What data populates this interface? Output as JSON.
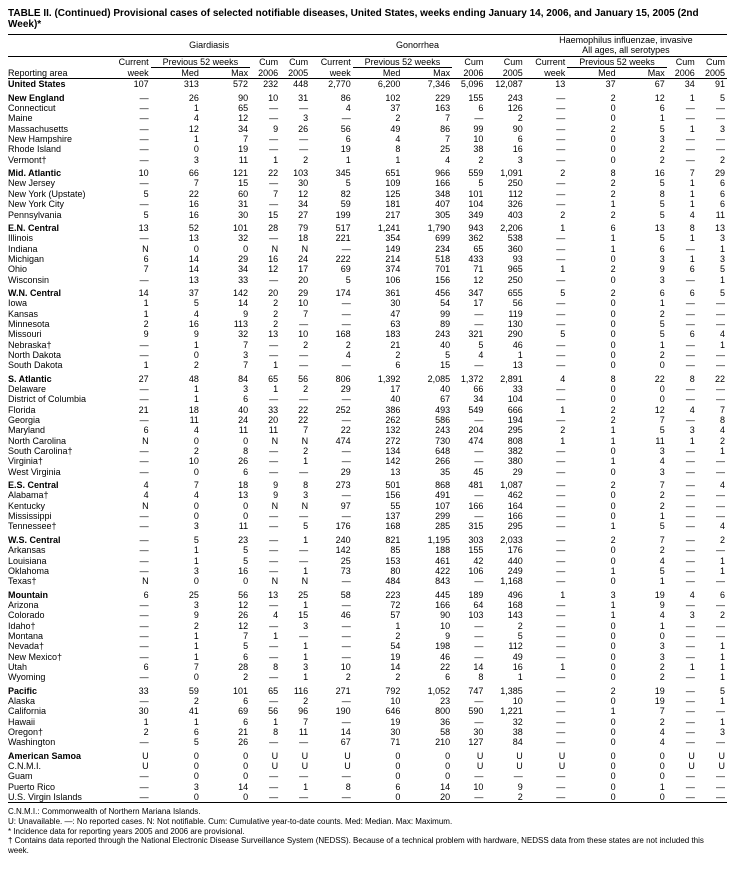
{
  "title": "TABLE II. (Continued) Provisional cases of selected notifiable diseases, United States, weeks ending January 14, 2006, and January 15, 2005 (2nd Week)*",
  "diseases": [
    "Giardiasis",
    "Gonorrhea",
    "Haemophilus influenzae, invasive\nAll ages, all serotypes"
  ],
  "group_headers": {
    "current": "Current",
    "prev": "Previous 52 weeks",
    "cum": "Cum",
    "cum2": "Cum"
  },
  "col_headers": [
    "Reporting area",
    "week",
    "Med",
    "Max",
    "2006",
    "2005",
    "week",
    "Med",
    "Max",
    "2006",
    "2005",
    "week",
    "Med",
    "Max",
    "2006",
    "2005"
  ],
  "rows": [
    {
      "section": true,
      "area": "United States",
      "v": [
        "107",
        "313",
        "572",
        "232",
        "448",
        "2,770",
        "6,200",
        "7,346",
        "5,096",
        "12,087",
        "13",
        "37",
        "67",
        "34",
        "91"
      ]
    },
    {
      "section": true,
      "area": "New England",
      "v": [
        "—",
        "26",
        "90",
        "10",
        "31",
        "86",
        "102",
        "229",
        "155",
        "243",
        "—",
        "2",
        "12",
        "1",
        "5"
      ]
    },
    {
      "area": "Connecticut",
      "v": [
        "—",
        "1",
        "65",
        "—",
        "—",
        "4",
        "37",
        "163",
        "6",
        "126",
        "—",
        "0",
        "6",
        "—",
        "—"
      ]
    },
    {
      "area": "Maine",
      "v": [
        "—",
        "4",
        "12",
        "—",
        "3",
        "—",
        "2",
        "7",
        "—",
        "2",
        "—",
        "0",
        "1",
        "—",
        "—"
      ]
    },
    {
      "area": "Massachusetts",
      "v": [
        "—",
        "12",
        "34",
        "9",
        "26",
        "56",
        "49",
        "86",
        "99",
        "90",
        "—",
        "2",
        "5",
        "1",
        "3"
      ]
    },
    {
      "area": "New Hampshire",
      "v": [
        "—",
        "1",
        "7",
        "—",
        "—",
        "6",
        "4",
        "7",
        "10",
        "6",
        "—",
        "0",
        "3",
        "—",
        "—"
      ]
    },
    {
      "area": "Rhode Island",
      "v": [
        "—",
        "0",
        "19",
        "—",
        "—",
        "19",
        "8",
        "25",
        "38",
        "16",
        "—",
        "0",
        "2",
        "—",
        "—"
      ]
    },
    {
      "area": "Vermont†",
      "v": [
        "—",
        "3",
        "11",
        "1",
        "2",
        "1",
        "1",
        "4",
        "2",
        "3",
        "—",
        "0",
        "2",
        "—",
        "2"
      ]
    },
    {
      "section": true,
      "area": "Mid. Atlantic",
      "v": [
        "10",
        "66",
        "121",
        "22",
        "103",
        "345",
        "651",
        "966",
        "559",
        "1,091",
        "2",
        "8",
        "16",
        "7",
        "29"
      ]
    },
    {
      "area": "New Jersey",
      "v": [
        "—",
        "7",
        "15",
        "—",
        "30",
        "5",
        "109",
        "166",
        "5",
        "250",
        "—",
        "2",
        "5",
        "1",
        "6"
      ]
    },
    {
      "area": "New York (Upstate)",
      "v": [
        "5",
        "22",
        "60",
        "7",
        "12",
        "82",
        "125",
        "348",
        "101",
        "112",
        "—",
        "2",
        "8",
        "1",
        "6"
      ]
    },
    {
      "area": "New York City",
      "v": [
        "—",
        "16",
        "31",
        "—",
        "34",
        "59",
        "181",
        "407",
        "104",
        "326",
        "—",
        "1",
        "5",
        "1",
        "6"
      ]
    },
    {
      "area": "Pennsylvania",
      "v": [
        "5",
        "16",
        "30",
        "15",
        "27",
        "199",
        "217",
        "305",
        "349",
        "403",
        "2",
        "2",
        "5",
        "4",
        "11"
      ]
    },
    {
      "section": true,
      "area": "E.N. Central",
      "v": [
        "13",
        "52",
        "101",
        "28",
        "79",
        "517",
        "1,241",
        "1,790",
        "943",
        "2,206",
        "1",
        "6",
        "13",
        "8",
        "13"
      ]
    },
    {
      "area": "Illinois",
      "v": [
        "—",
        "13",
        "32",
        "—",
        "18",
        "221",
        "354",
        "699",
        "362",
        "538",
        "—",
        "1",
        "5",
        "1",
        "3"
      ]
    },
    {
      "area": "Indiana",
      "v": [
        "N",
        "0",
        "0",
        "N",
        "N",
        "—",
        "149",
        "234",
        "65",
        "360",
        "—",
        "1",
        "6",
        "—",
        "1"
      ]
    },
    {
      "area": "Michigan",
      "v": [
        "6",
        "14",
        "29",
        "16",
        "24",
        "222",
        "214",
        "518",
        "433",
        "93",
        "—",
        "0",
        "3",
        "1",
        "3"
      ]
    },
    {
      "area": "Ohio",
      "v": [
        "7",
        "14",
        "34",
        "12",
        "17",
        "69",
        "374",
        "701",
        "71",
        "965",
        "1",
        "2",
        "9",
        "6",
        "5"
      ]
    },
    {
      "area": "Wisconsin",
      "v": [
        "—",
        "13",
        "33",
        "—",
        "20",
        "5",
        "106",
        "156",
        "12",
        "250",
        "—",
        "0",
        "3",
        "—",
        "1"
      ]
    },
    {
      "section": true,
      "area": "W.N. Central",
      "v": [
        "14",
        "37",
        "142",
        "20",
        "29",
        "174",
        "361",
        "456",
        "347",
        "655",
        "5",
        "2",
        "6",
        "6",
        "5"
      ]
    },
    {
      "area": "Iowa",
      "v": [
        "1",
        "5",
        "14",
        "2",
        "10",
        "—",
        "30",
        "54",
        "17",
        "56",
        "—",
        "0",
        "1",
        "—",
        "—"
      ]
    },
    {
      "area": "Kansas",
      "v": [
        "1",
        "4",
        "9",
        "2",
        "7",
        "—",
        "47",
        "99",
        "—",
        "119",
        "—",
        "0",
        "2",
        "—",
        "—"
      ]
    },
    {
      "area": "Minnesota",
      "v": [
        "2",
        "16",
        "113",
        "2",
        "—",
        "—",
        "63",
        "89",
        "—",
        "130",
        "—",
        "0",
        "5",
        "—",
        "—"
      ]
    },
    {
      "area": "Missouri",
      "v": [
        "9",
        "9",
        "32",
        "13",
        "10",
        "168",
        "183",
        "243",
        "321",
        "290",
        "5",
        "0",
        "5",
        "6",
        "4"
      ]
    },
    {
      "area": "Nebraska†",
      "v": [
        "—",
        "1",
        "7",
        "—",
        "2",
        "2",
        "21",
        "40",
        "5",
        "46",
        "—",
        "0",
        "1",
        "—",
        "1"
      ]
    },
    {
      "area": "North Dakota",
      "v": [
        "—",
        "0",
        "3",
        "—",
        "—",
        "4",
        "2",
        "5",
        "4",
        "1",
        "—",
        "0",
        "2",
        "—",
        "—"
      ]
    },
    {
      "area": "South Dakota",
      "v": [
        "1",
        "2",
        "7",
        "1",
        "—",
        "—",
        "6",
        "15",
        "—",
        "13",
        "—",
        "0",
        "0",
        "—",
        "—"
      ]
    },
    {
      "section": true,
      "area": "S. Atlantic",
      "v": [
        "27",
        "48",
        "84",
        "65",
        "56",
        "806",
        "1,392",
        "2,085",
        "1,372",
        "2,891",
        "4",
        "8",
        "22",
        "8",
        "22"
      ]
    },
    {
      "area": "Delaware",
      "v": [
        "—",
        "1",
        "3",
        "1",
        "2",
        "29",
        "17",
        "40",
        "66",
        "33",
        "—",
        "0",
        "0",
        "—",
        "—"
      ]
    },
    {
      "area": "District of Columbia",
      "v": [
        "—",
        "1",
        "6",
        "—",
        "—",
        "—",
        "40",
        "67",
        "34",
        "104",
        "—",
        "0",
        "0",
        "—",
        "—"
      ]
    },
    {
      "area": "Florida",
      "v": [
        "21",
        "18",
        "40",
        "33",
        "22",
        "252",
        "386",
        "493",
        "549",
        "666",
        "1",
        "2",
        "12",
        "4",
        "7"
      ]
    },
    {
      "area": "Georgia",
      "v": [
        "—",
        "11",
        "24",
        "20",
        "22",
        "—",
        "262",
        "586",
        "—",
        "194",
        "—",
        "2",
        "7",
        "—",
        "8"
      ]
    },
    {
      "area": "Maryland",
      "v": [
        "6",
        "4",
        "11",
        "11",
        "7",
        "22",
        "132",
        "243",
        "204",
        "295",
        "2",
        "1",
        "5",
        "3",
        "4"
      ]
    },
    {
      "area": "North Carolina",
      "v": [
        "N",
        "0",
        "0",
        "N",
        "N",
        "474",
        "272",
        "730",
        "474",
        "808",
        "1",
        "1",
        "11",
        "1",
        "2"
      ]
    },
    {
      "area": "South Carolina†",
      "v": [
        "—",
        "2",
        "8",
        "—",
        "2",
        "—",
        "134",
        "648",
        "—",
        "382",
        "—",
        "0",
        "3",
        "—",
        "1"
      ]
    },
    {
      "area": "Virginia†",
      "v": [
        "—",
        "10",
        "26",
        "—",
        "1",
        "—",
        "142",
        "266",
        "—",
        "380",
        "—",
        "1",
        "4",
        "—",
        "—"
      ]
    },
    {
      "area": "West Virginia",
      "v": [
        "—",
        "0",
        "6",
        "—",
        "—",
        "29",
        "13",
        "35",
        "45",
        "29",
        "—",
        "0",
        "3",
        "—",
        "—"
      ]
    },
    {
      "section": true,
      "area": "E.S. Central",
      "v": [
        "4",
        "7",
        "18",
        "9",
        "8",
        "273",
        "501",
        "868",
        "481",
        "1,087",
        "—",
        "2",
        "7",
        "—",
        "4"
      ]
    },
    {
      "area": "Alabama†",
      "v": [
        "4",
        "4",
        "13",
        "9",
        "3",
        "—",
        "156",
        "491",
        "—",
        "462",
        "—",
        "0",
        "2",
        "—",
        "—"
      ]
    },
    {
      "area": "Kentucky",
      "v": [
        "N",
        "0",
        "0",
        "N",
        "N",
        "97",
        "55",
        "107",
        "166",
        "164",
        "—",
        "0",
        "2",
        "—",
        "—"
      ]
    },
    {
      "area": "Mississippi",
      "v": [
        "—",
        "0",
        "0",
        "—",
        "—",
        "—",
        "137",
        "299",
        "—",
        "166",
        "—",
        "0",
        "1",
        "—",
        "—"
      ]
    },
    {
      "area": "Tennessee†",
      "v": [
        "—",
        "3",
        "11",
        "—",
        "5",
        "176",
        "168",
        "285",
        "315",
        "295",
        "—",
        "1",
        "5",
        "—",
        "4"
      ]
    },
    {
      "section": true,
      "area": "W.S. Central",
      "v": [
        "—",
        "5",
        "23",
        "—",
        "1",
        "240",
        "821",
        "1,195",
        "303",
        "2,033",
        "—",
        "2",
        "7",
        "—",
        "2"
      ]
    },
    {
      "area": "Arkansas",
      "v": [
        "—",
        "1",
        "5",
        "—",
        "—",
        "142",
        "85",
        "188",
        "155",
        "176",
        "—",
        "0",
        "2",
        "—",
        "—"
      ]
    },
    {
      "area": "Louisiana",
      "v": [
        "—",
        "1",
        "5",
        "—",
        "—",
        "25",
        "153",
        "461",
        "42",
        "440",
        "—",
        "0",
        "4",
        "—",
        "1"
      ]
    },
    {
      "area": "Oklahoma",
      "v": [
        "—",
        "3",
        "16",
        "—",
        "1",
        "73",
        "80",
        "422",
        "106",
        "249",
        "—",
        "1",
        "5",
        "—",
        "1"
      ]
    },
    {
      "area": "Texas†",
      "v": [
        "N",
        "0",
        "0",
        "N",
        "N",
        "—",
        "484",
        "843",
        "—",
        "1,168",
        "—",
        "0",
        "1",
        "—",
        "—"
      ]
    },
    {
      "section": true,
      "area": "Mountain",
      "v": [
        "6",
        "25",
        "56",
        "13",
        "25",
        "58",
        "223",
        "445",
        "189",
        "496",
        "1",
        "3",
        "19",
        "4",
        "6"
      ]
    },
    {
      "area": "Arizona",
      "v": [
        "—",
        "3",
        "12",
        "—",
        "1",
        "—",
        "72",
        "166",
        "64",
        "168",
        "—",
        "1",
        "9",
        "—",
        "—"
      ]
    },
    {
      "area": "Colorado",
      "v": [
        "—",
        "9",
        "26",
        "4",
        "15",
        "46",
        "57",
        "90",
        "103",
        "143",
        "—",
        "1",
        "4",
        "3",
        "2"
      ]
    },
    {
      "area": "Idaho†",
      "v": [
        "—",
        "2",
        "12",
        "—",
        "3",
        "—",
        "1",
        "10",
        "—",
        "2",
        "—",
        "0",
        "1",
        "—",
        "—"
      ]
    },
    {
      "area": "Montana",
      "v": [
        "—",
        "1",
        "7",
        "1",
        "—",
        "—",
        "2",
        "9",
        "—",
        "5",
        "—",
        "0",
        "0",
        "—",
        "—"
      ]
    },
    {
      "area": "Nevada†",
      "v": [
        "—",
        "1",
        "5",
        "—",
        "1",
        "—",
        "54",
        "198",
        "—",
        "112",
        "—",
        "0",
        "3",
        "—",
        "1"
      ]
    },
    {
      "area": "New Mexico†",
      "v": [
        "—",
        "1",
        "6",
        "—",
        "1",
        "—",
        "19",
        "46",
        "—",
        "49",
        "—",
        "0",
        "3",
        "—",
        "1"
      ]
    },
    {
      "area": "Utah",
      "v": [
        "6",
        "7",
        "28",
        "8",
        "3",
        "10",
        "14",
        "22",
        "14",
        "16",
        "1",
        "0",
        "2",
        "1",
        "1"
      ]
    },
    {
      "area": "Wyoming",
      "v": [
        "—",
        "0",
        "2",
        "—",
        "1",
        "2",
        "2",
        "6",
        "8",
        "1",
        "—",
        "0",
        "2",
        "—",
        "1"
      ]
    },
    {
      "section": true,
      "area": "Pacific",
      "v": [
        "33",
        "59",
        "101",
        "65",
        "116",
        "271",
        "792",
        "1,052",
        "747",
        "1,385",
        "—",
        "2",
        "19",
        "—",
        "5"
      ]
    },
    {
      "area": "Alaska",
      "v": [
        "—",
        "2",
        "6",
        "—",
        "2",
        "—",
        "10",
        "23",
        "—",
        "10",
        "—",
        "0",
        "19",
        "—",
        "1"
      ]
    },
    {
      "area": "California",
      "v": [
        "30",
        "41",
        "69",
        "56",
        "96",
        "190",
        "646",
        "800",
        "590",
        "1,221",
        "—",
        "1",
        "7",
        "—",
        "—"
      ]
    },
    {
      "area": "Hawaii",
      "v": [
        "1",
        "1",
        "6",
        "1",
        "7",
        "—",
        "19",
        "36",
        "—",
        "32",
        "—",
        "0",
        "2",
        "—",
        "1"
      ]
    },
    {
      "area": "Oregon†",
      "v": [
        "2",
        "6",
        "21",
        "8",
        "11",
        "14",
        "30",
        "58",
        "30",
        "38",
        "—",
        "0",
        "4",
        "—",
        "3"
      ]
    },
    {
      "area": "Washington",
      "v": [
        "—",
        "5",
        "26",
        "—",
        "—",
        "67",
        "71",
        "210",
        "127",
        "84",
        "—",
        "0",
        "4",
        "—",
        "—"
      ]
    },
    {
      "section": true,
      "area": "American Samoa",
      "v": [
        "U",
        "0",
        "0",
        "U",
        "U",
        "U",
        "0",
        "0",
        "U",
        "U",
        "U",
        "0",
        "0",
        "U",
        "U"
      ]
    },
    {
      "area": "C.N.M.I.",
      "v": [
        "U",
        "0",
        "0",
        "U",
        "U",
        "U",
        "0",
        "0",
        "U",
        "U",
        "U",
        "0",
        "0",
        "U",
        "U"
      ]
    },
    {
      "area": "Guam",
      "v": [
        "—",
        "0",
        "0",
        "—",
        "—",
        "—",
        "0",
        "0",
        "—",
        "—",
        "—",
        "0",
        "0",
        "—",
        "—"
      ]
    },
    {
      "area": "Puerto Rico",
      "v": [
        "—",
        "3",
        "14",
        "—",
        "1",
        "8",
        "6",
        "14",
        "10",
        "9",
        "—",
        "0",
        "1",
        "—",
        "—"
      ]
    },
    {
      "area": "U.S. Virgin Islands",
      "v": [
        "—",
        "0",
        "0",
        "—",
        "—",
        "—",
        "0",
        "20",
        "—",
        "2",
        "—",
        "0",
        "0",
        "—",
        "—"
      ]
    }
  ],
  "footnotes": [
    "C.N.M.I.: Commonwealth of Northern Mariana Islands.",
    "U: Unavailable.      —: No reported cases.      N: Not notifiable.      Cum: Cumulative year-to-date counts.      Med: Median.      Max: Maximum.",
    "* Incidence data for reporting years 2005 and 2006 are provisional.",
    "† Contains data reported through the National Electronic Disease Surveillance System (NEDSS). Because of a technical problem with hardware, NEDSS data from these states are not included this week."
  ]
}
